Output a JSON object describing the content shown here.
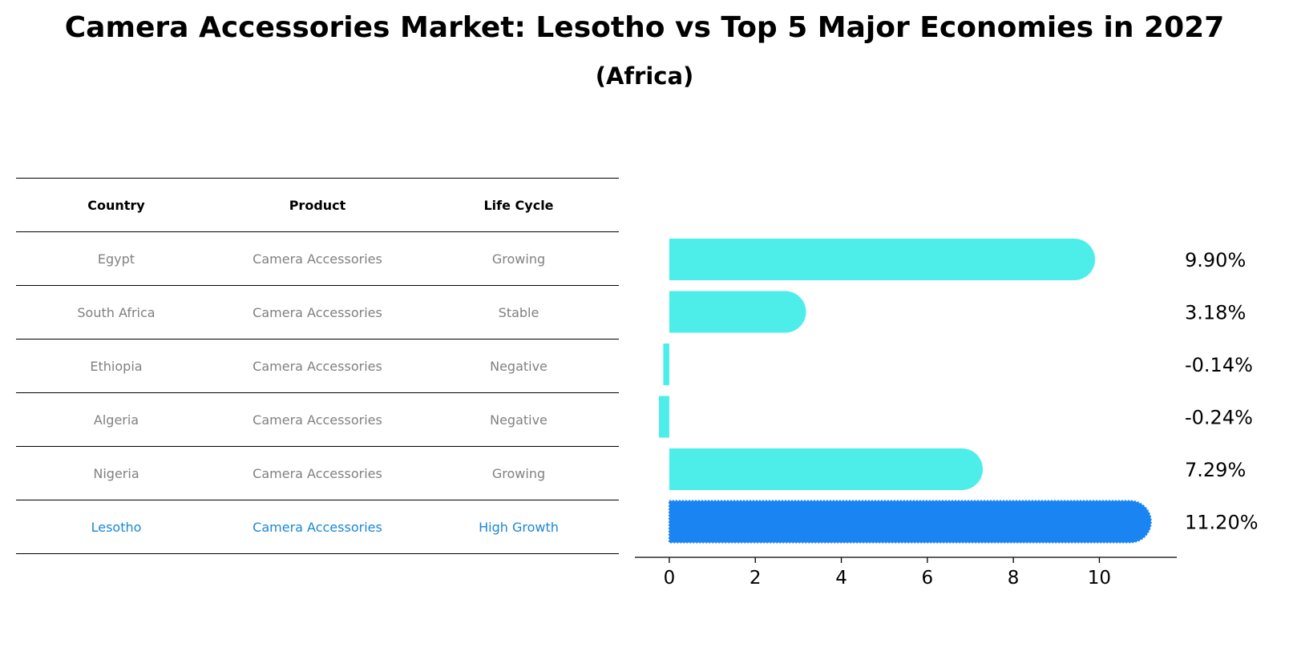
{
  "chart_data": {
    "type": "bar",
    "orientation": "horizontal",
    "title": "Camera Accessories Market: Lesotho vs Top 5 Major Economies in 2027",
    "subtitle": "(Africa)",
    "table": {
      "headers": [
        "Country",
        "Product",
        "Life Cycle"
      ],
      "rows": [
        {
          "country": "Egypt",
          "product": "Camera Accessories",
          "life_cycle": "Growing"
        },
        {
          "country": "South Africa",
          "product": "Camera Accessories",
          "life_cycle": "Stable"
        },
        {
          "country": "Ethiopia",
          "product": "Camera Accessories",
          "life_cycle": "Negative"
        },
        {
          "country": "Algeria",
          "product": "Camera Accessories",
          "life_cycle": "Negative"
        },
        {
          "country": "Nigeria",
          "product": "Camera Accessories",
          "life_cycle": "Growing"
        },
        {
          "country": "Lesotho",
          "product": "Camera Accessories",
          "life_cycle": "High Growth"
        }
      ]
    },
    "categories": [
      "Egypt",
      "South Africa",
      "Ethiopia",
      "Algeria",
      "Nigeria",
      "Lesotho"
    ],
    "values": [
      9.9,
      3.18,
      -0.14,
      -0.24,
      7.29,
      11.2
    ],
    "value_labels": [
      "9.90%",
      "3.18%",
      "-0.14%",
      "-0.24%",
      "7.29%",
      "11.20%"
    ],
    "highlight": "Lesotho",
    "colors": {
      "default": "#4deeea",
      "highlight": "#1a84f2",
      "highlight_text": "#1a87d6",
      "muted_text": "#808080"
    },
    "xlim": [
      -0.8,
      11.8
    ],
    "xticks": [
      0,
      2,
      4,
      6,
      8,
      10
    ],
    "xlabel": "",
    "ylabel": "",
    "grid": false
  }
}
